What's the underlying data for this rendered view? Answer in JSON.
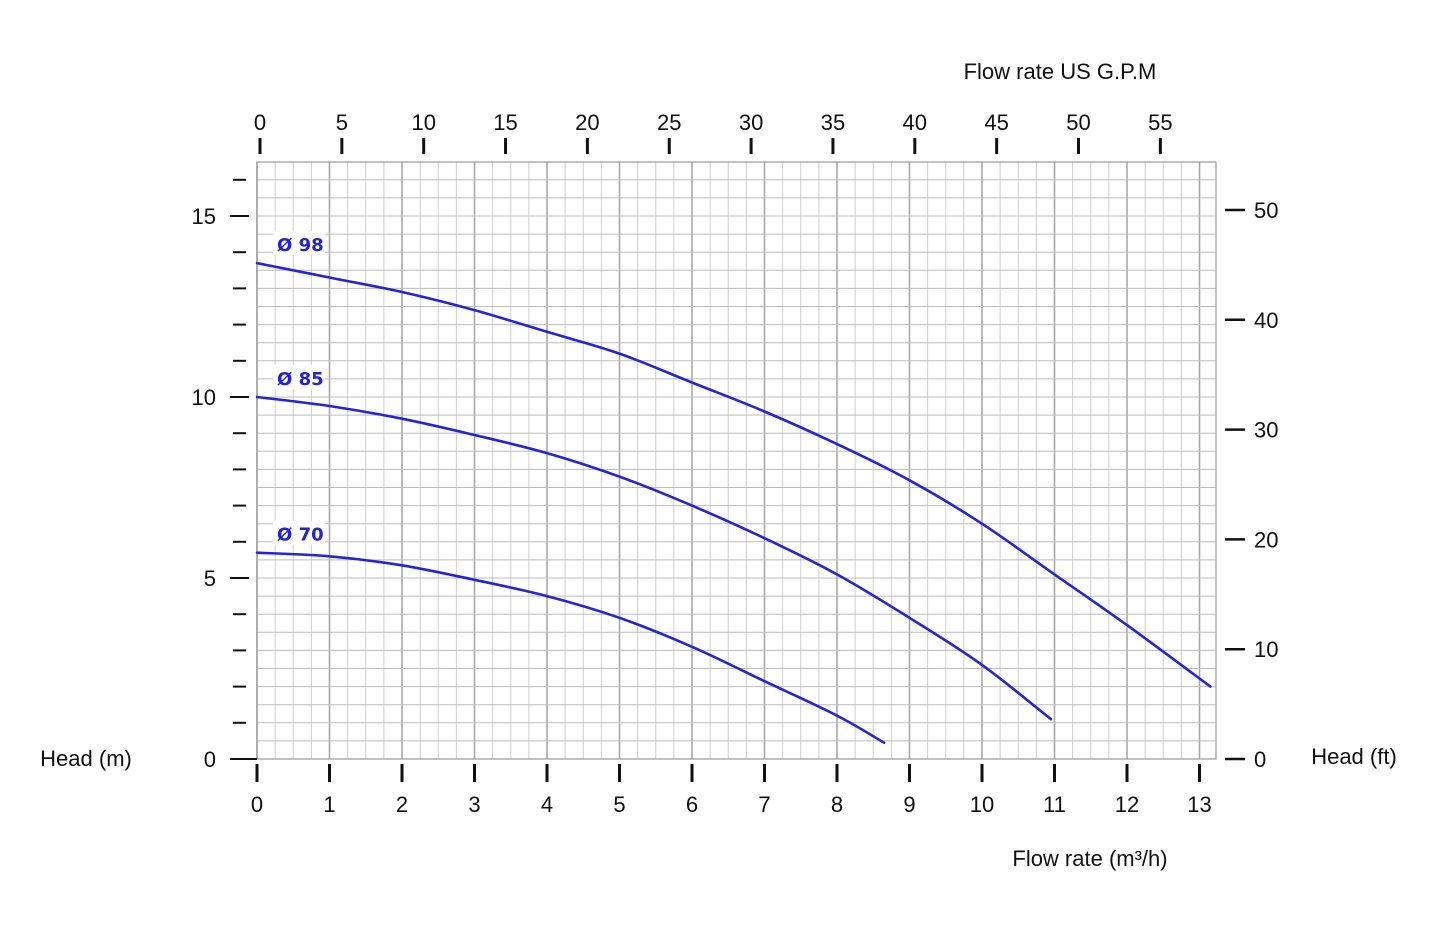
{
  "chart_data": {
    "type": "line",
    "title": "",
    "xlabel": "Flow rate  (m³/h)",
    "ylabel": "Head (m)",
    "x2label": "Flow rate US  G.P.M",
    "y2label": "Head (ft)",
    "xlim": [
      0,
      13.25
    ],
    "ylim": [
      0,
      16.5
    ],
    "x2lim": [
      0,
      58.3
    ],
    "y2lim": [
      0,
      54.1
    ],
    "x_ticks": [
      "0",
      "1",
      "2",
      "3",
      "4",
      "5",
      "6",
      "7",
      "8",
      "9",
      "10",
      "11",
      "12",
      "13"
    ],
    "y_ticks": [
      "0",
      "5",
      "10",
      "15"
    ],
    "x2_ticks": [
      "0",
      "5",
      "10",
      "15",
      "20",
      "25",
      "30",
      "35",
      "40",
      "45",
      "50",
      "55"
    ],
    "y2_ticks": [
      "0",
      "10",
      "20",
      "30",
      "40",
      "50"
    ],
    "grid": true,
    "series_color": "#2424d8",
    "series": [
      {
        "name": "Ø 98",
        "x": [
          0,
          1,
          2,
          3,
          4,
          5,
          6,
          7,
          8,
          9,
          10,
          11,
          12,
          13.15
        ],
        "y": [
          13.7,
          13.3,
          12.9,
          12.4,
          11.8,
          11.2,
          10.4,
          9.6,
          8.7,
          7.7,
          6.5,
          5.1,
          3.7,
          2.0
        ]
      },
      {
        "name": "Ø 85",
        "x": [
          0,
          1,
          2,
          3,
          4,
          5,
          6,
          7,
          8,
          9,
          10,
          10.95
        ],
        "y": [
          10.0,
          9.75,
          9.4,
          8.95,
          8.45,
          7.8,
          7.0,
          6.1,
          5.1,
          3.9,
          2.6,
          1.1
        ]
      },
      {
        "name": "Ø 70",
        "x": [
          0,
          1,
          2,
          3,
          4,
          5,
          6,
          7,
          8,
          8.65
        ],
        "y": [
          5.7,
          5.6,
          5.35,
          4.95,
          4.5,
          3.9,
          3.1,
          2.15,
          1.2,
          0.45
        ]
      }
    ]
  }
}
